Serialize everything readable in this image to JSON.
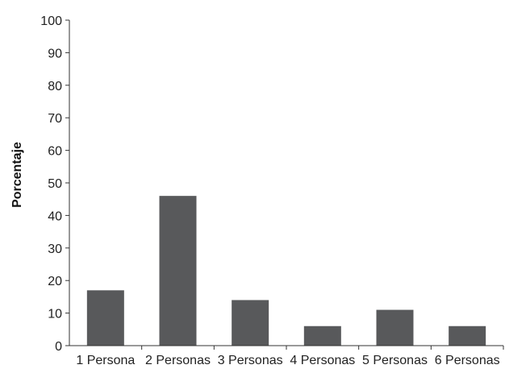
{
  "chart_data": {
    "type": "bar",
    "title": "",
    "xlabel": "",
    "ylabel": "Porcentaje",
    "ylim": [
      0,
      100
    ],
    "yticks": [
      0,
      10,
      20,
      30,
      40,
      50,
      60,
      70,
      80,
      90,
      100
    ],
    "grid": false,
    "categories": [
      "1 Persona",
      "2 Personas",
      "3 Personas",
      "4 Personas",
      "5 Personas",
      "6 Personas"
    ],
    "values": [
      17,
      46,
      14,
      6,
      11,
      6
    ],
    "bar_color": "#58595b",
    "axis_color": "#333333"
  }
}
